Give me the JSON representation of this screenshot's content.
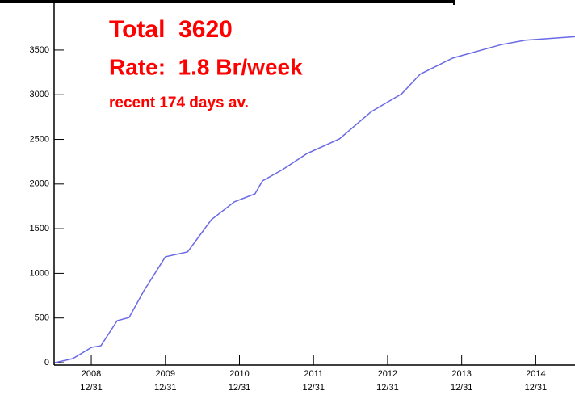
{
  "chart_data": {
    "type": "line",
    "annotations": [
      "Total  3620",
      "Rate:  1.8 Br/week",
      "recent 174 days av."
    ],
    "x": [
      2008.51,
      2008.75,
      2009.0,
      2009.13,
      2009.35,
      2009.51,
      2009.71,
      2010.0,
      2010.3,
      2010.62,
      2010.93,
      2011.21,
      2011.31,
      2011.58,
      2011.91,
      2012.35,
      2012.78,
      2013.19,
      2013.44,
      2013.88,
      2014.53,
      2014.86,
      2015.53
    ],
    "series": [
      {
        "color": "#6a6ae6",
        "values": [
          0,
          45,
          170,
          190,
          470,
          505,
          805,
          1185,
          1240,
          1600,
          1800,
          1890,
          2035,
          2160,
          2340,
          2505,
          2810,
          3010,
          3230,
          3410,
          3560,
          3610,
          3650
        ]
      }
    ],
    "xlim": [
      2008.498,
      2015.53
    ],
    "xticks": [
      {
        "value": 2009.0,
        "label": [
          "2008",
          "12/31"
        ]
      },
      {
        "value": 2010.0,
        "label": [
          "2009",
          "12/31"
        ]
      },
      {
        "value": 2011.0,
        "label": [
          "2010",
          "12/31"
        ]
      },
      {
        "value": 2012.0,
        "label": [
          "2011",
          "12/31"
        ]
      },
      {
        "value": 2013.0,
        "label": [
          "2012",
          "12/31"
        ]
      },
      {
        "value": 2014.0,
        "label": [
          "2013",
          "12/31"
        ]
      },
      {
        "value": 2015.0,
        "label": [
          "2014",
          "12/31"
        ]
      }
    ],
    "ylim": [
      0,
      4060
    ],
    "yticks": [
      0,
      500,
      1000,
      1500,
      2000,
      2500,
      3000,
      3500
    ]
  }
}
